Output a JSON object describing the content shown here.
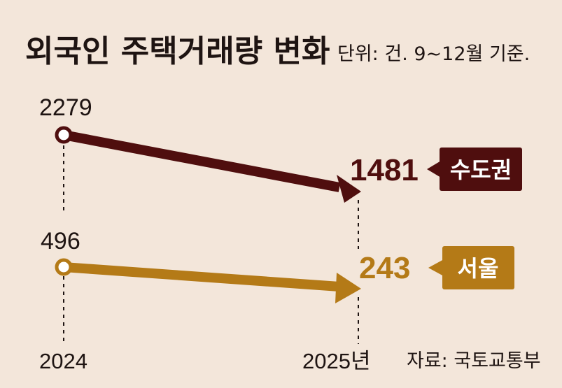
{
  "title": "외국인 주택거래량 변화",
  "unit_note": "단위: 건. 9~12월 기준.",
  "source": "자료: 국토교통부",
  "colors": {
    "background": "#f3e6da",
    "text": "#1e1412"
  },
  "chart_data": {
    "type": "line",
    "categories": [
      "2024",
      "2025년"
    ],
    "series": [
      {
        "name": "수도권",
        "values": [
          2279,
          1481
        ],
        "color": "#4f0e0e"
      },
      {
        "name": "서울",
        "values": [
          496,
          243
        ],
        "color": "#b47a17"
      }
    ],
    "value_labels": [
      "2279",
      "1481",
      "496",
      "243"
    ]
  }
}
